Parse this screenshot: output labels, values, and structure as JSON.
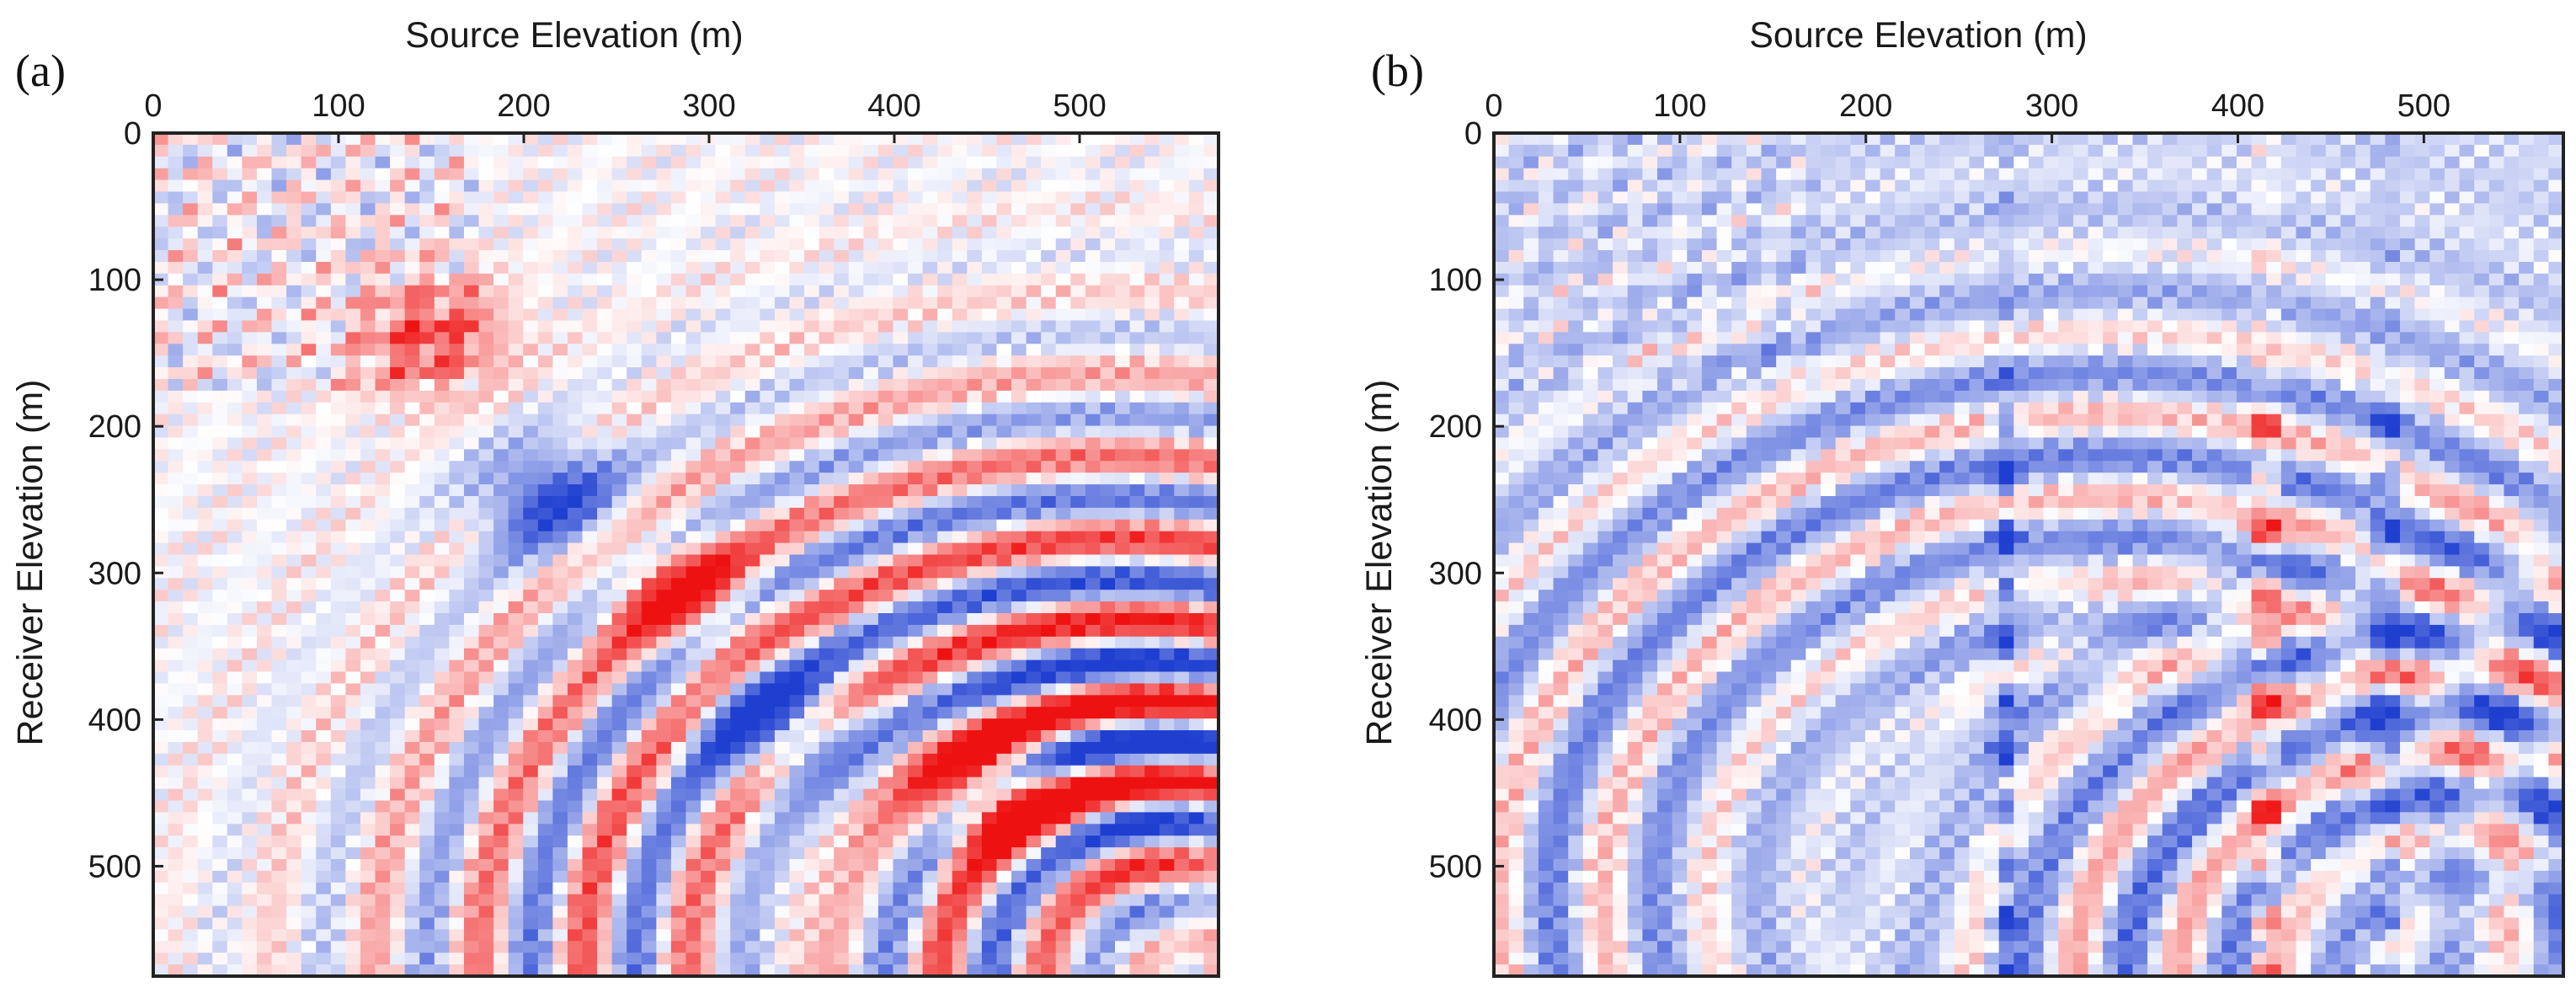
{
  "chart_data": [
    {
      "type": "heatmap",
      "panel_label": "(a)",
      "title": "",
      "xlabel": "Source Elevation (m)",
      "ylabel": "Receiver Elevation (m)",
      "xlim": [
        0,
        575
      ],
      "ylim": [
        575,
        0
      ],
      "xticks": [
        0,
        100,
        200,
        300,
        400,
        500
      ],
      "yticks": [
        0,
        100,
        200,
        300,
        400,
        500
      ],
      "x_axis_position": "top",
      "colormap": "blue-white-red",
      "colors": {
        "negative": "#1f3fd0",
        "zero": "#ffffff",
        "positive": "#ee1111"
      },
      "background_tint": 0.0,
      "structures": [
        {
          "shape": "ring",
          "center": [
            560,
            575
          ],
          "radius": 135,
          "amplitude": 1.0,
          "width": 25,
          "sign": 1
        },
        {
          "shape": "ring",
          "center": [
            520,
            565
          ],
          "radius": 260,
          "amplitude": 0.75,
          "width": 40,
          "sign": -1
        },
        {
          "shape": "blob",
          "center": [
            455,
            450
          ],
          "amplitude": 1.0,
          "sign": 1
        },
        {
          "shape": "blob",
          "center": [
            285,
            315
          ],
          "amplitude": 0.85,
          "sign": 1
        },
        {
          "shape": "blob",
          "center": [
            215,
            250
          ],
          "amplitude": 0.85,
          "sign": -1
        },
        {
          "shape": "blob",
          "center": [
            335,
            400
          ],
          "amplitude": 0.8,
          "sign": -1
        },
        {
          "shape": "blob",
          "center": [
            150,
            140
          ],
          "amplitude": 0.7,
          "sign": 1
        },
        {
          "shape": "band",
          "x_range": [
            0,
            175
          ],
          "y_range": [
            0,
            175
          ],
          "amplitude": 0.4
        }
      ]
    },
    {
      "type": "heatmap",
      "panel_label": "(b)",
      "title": "",
      "xlabel": "Source Elevation (m)",
      "ylabel": "Receiver Elevation (m)",
      "xlim": [
        0,
        575
      ],
      "ylim": [
        575,
        0
      ],
      "xticks": [
        0,
        100,
        200,
        300,
        400,
        500
      ],
      "yticks": [
        0,
        100,
        200,
        300,
        400,
        500
      ],
      "x_axis_position": "top",
      "colormap": "blue-white-red",
      "colors": {
        "negative": "#1f3fd0",
        "zero": "#ffffff",
        "positive": "#ee1111"
      },
      "background_tint": -0.18,
      "structures": [
        {
          "shape": "stripe",
          "x": 415,
          "amplitude": 0.9,
          "sign": 1
        },
        {
          "shape": "stripe",
          "x": 275,
          "amplitude": 0.8,
          "sign": -1
        },
        {
          "shape": "stripe",
          "x": 480,
          "amplitude": 0.7,
          "sign": -1
        },
        {
          "shape": "ring",
          "center": [
            520,
            575
          ],
          "radius": 180,
          "amplitude": 0.55,
          "width": 30,
          "sign": -1
        },
        {
          "shape": "ring",
          "center": [
            330,
            520
          ],
          "radius": 300,
          "amplitude": 0.45,
          "width": 35,
          "sign": -1
        },
        {
          "shape": "band",
          "x_range": [
            0,
            175
          ],
          "y_range": [
            0,
            175
          ],
          "amplitude": 0.25
        }
      ]
    }
  ]
}
